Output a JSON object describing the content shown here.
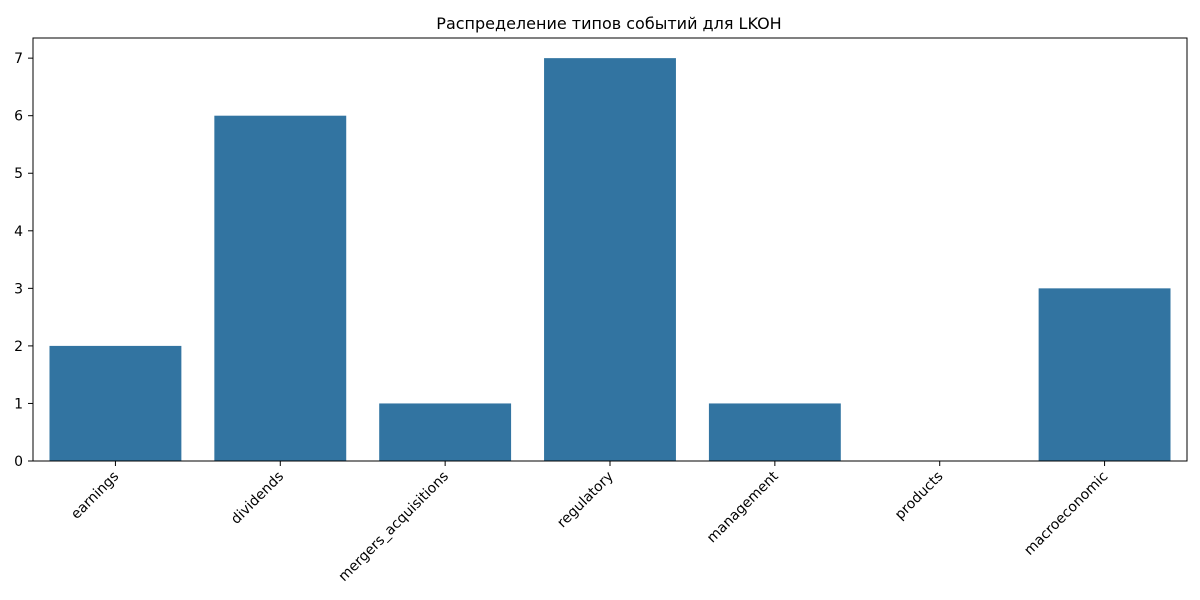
{
  "chart_data": {
    "type": "bar",
    "title": "Распределение типов событий для LKOH",
    "xlabel": "",
    "ylabel": "",
    "categories": [
      "earnings",
      "dividends",
      "mergers_acquisitions",
      "regulatory",
      "management",
      "products",
      "macroeconomic"
    ],
    "values": [
      2,
      6,
      1,
      7,
      1,
      0,
      3
    ],
    "ylim": [
      0,
      7.35
    ],
    "yticks": [
      0,
      1,
      2,
      3,
      4,
      5,
      6,
      7
    ],
    "bar_color": "#3274a1",
    "grid": false,
    "x_tick_rotation_deg": 45
  }
}
